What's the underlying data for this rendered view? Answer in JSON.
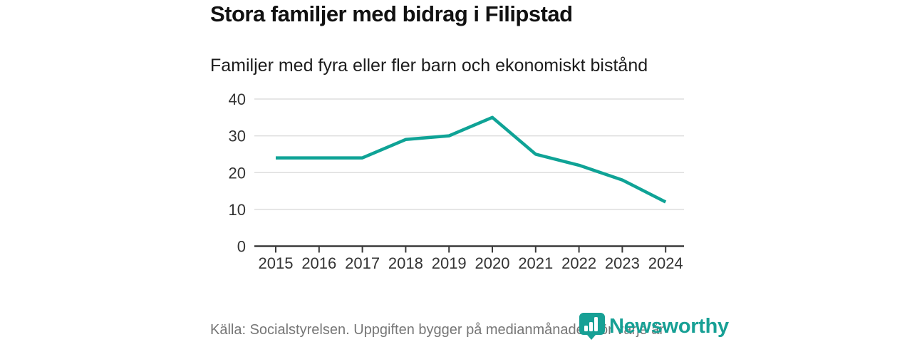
{
  "header": {
    "title": "Stora familjer med bidrag i Filipstad",
    "subtitle": "Familjer med fyra eller fler barn och ekonomiskt bistånd"
  },
  "chart_data": {
    "type": "line",
    "title": "Stora familjer med bidrag i Filipstad",
    "subtitle": "Familjer med fyra eller fler barn och ekonomiskt bistånd",
    "categories": [
      "2015",
      "2016",
      "2017",
      "2018",
      "2019",
      "2020",
      "2021",
      "2022",
      "2023",
      "2024"
    ],
    "series": [
      {
        "name": "Familjer med fyra eller fler barn och ekonomiskt bistånd",
        "values": [
          24,
          24,
          24,
          29,
          30,
          35,
          25,
          22,
          18,
          12
        ]
      }
    ],
    "xlabel": "",
    "ylabel": "",
    "ylim": [
      0,
      40
    ],
    "yticks": [
      0,
      10,
      20,
      30,
      40
    ],
    "grid": true,
    "legend_position": "none"
  },
  "colors": {
    "line": "#0FA396",
    "grid": "#dedede",
    "axis": "#3a3a3a",
    "tick_label": "#333333",
    "brand": "#17a095"
  },
  "footer": {
    "source": "Källa: Socialstyrelsen. Uppgiften bygger på medianmånaden för varje år",
    "brand": "Newsworthy"
  }
}
